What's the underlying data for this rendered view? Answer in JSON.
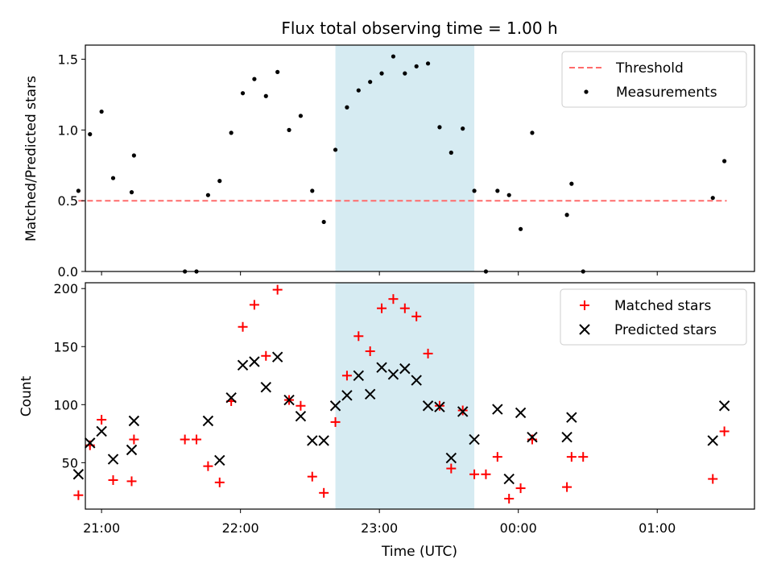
{
  "chart_data": [
    {
      "type": "scatter",
      "title": "Flux total observing time = 1.00 h",
      "xlabel": "",
      "ylabel": "Matched/Predicted stars",
      "x_axis": "time",
      "xlim": [
        "20:53",
        "01:42"
      ],
      "ylim": [
        0,
        1.6
      ],
      "yticks": [
        0.0,
        0.5,
        1.0,
        1.5
      ],
      "ytick_labels": [
        "0.0",
        "0.5",
        "1.0",
        "1.5"
      ],
      "x_tick_labels_shown": false,
      "grid": false,
      "legend_position": "top-right",
      "shaded_interval": {
        "start": "22:41",
        "end": "23:41",
        "color": "#add8e6"
      },
      "threshold": {
        "name": "Threshold",
        "value": 0.5,
        "x_start": "20:50",
        "x_end": "01:30",
        "color": "#ff6b6b",
        "style": "dashed"
      },
      "series": [
        {
          "name": "Measurements",
          "color": "#000000",
          "marker": "dot",
          "points": [
            [
              "20:50",
              0.57
            ],
            [
              "20:55",
              0.97
            ],
            [
              "21:00",
              1.13
            ],
            [
              "21:05",
              0.66
            ],
            [
              "21:13",
              0.56
            ],
            [
              "21:14",
              0.82
            ],
            [
              "21:36",
              0.0
            ],
            [
              "21:41",
              0.0
            ],
            [
              "21:46",
              0.54
            ],
            [
              "21:51",
              0.64
            ],
            [
              "21:56",
              0.98
            ],
            [
              "22:01",
              1.26
            ],
            [
              "22:06",
              1.36
            ],
            [
              "22:11",
              1.24
            ],
            [
              "22:16",
              1.41
            ],
            [
              "22:21",
              1.0
            ],
            [
              "22:26",
              1.1
            ],
            [
              "22:31",
              0.57
            ],
            [
              "22:36",
              0.35
            ],
            [
              "22:41",
              0.86
            ],
            [
              "22:46",
              1.16
            ],
            [
              "22:51",
              1.28
            ],
            [
              "22:56",
              1.34
            ],
            [
              "23:01",
              1.4
            ],
            [
              "23:06",
              1.52
            ],
            [
              "23:11",
              1.4
            ],
            [
              "23:16",
              1.45
            ],
            [
              "23:21",
              1.47
            ],
            [
              "23:26",
              1.02
            ],
            [
              "23:31",
              0.84
            ],
            [
              "23:36",
              1.01
            ],
            [
              "23:41",
              0.57
            ],
            [
              "23:46",
              0.0
            ],
            [
              "23:51",
              0.57
            ],
            [
              "23:56",
              0.54
            ],
            [
              "00:01",
              0.3
            ],
            [
              "00:06",
              0.98
            ],
            [
              "00:21",
              0.4
            ],
            [
              "00:23",
              0.62
            ],
            [
              "00:28",
              0.0
            ],
            [
              "01:24",
              0.52
            ],
            [
              "01:29",
              0.78
            ]
          ]
        }
      ]
    },
    {
      "type": "scatter",
      "title": "",
      "xlabel": "Time (UTC)",
      "ylabel": "Count",
      "x_axis": "time",
      "xlim": [
        "20:53",
        "01:42"
      ],
      "ylim": [
        10,
        205
      ],
      "yticks": [
        50,
        100,
        150,
        200
      ],
      "ytick_labels": [
        "50",
        "100",
        "150",
        "200"
      ],
      "xticks": [
        "21:00",
        "22:00",
        "23:00",
        "00:00",
        "01:00"
      ],
      "xtick_labels": [
        "21:00",
        "22:00",
        "23:00",
        "00:00",
        "01:00"
      ],
      "grid": false,
      "legend_position": "top-right",
      "shaded_interval": {
        "start": "22:41",
        "end": "23:41",
        "color": "#add8e6"
      },
      "series": [
        {
          "name": "Matched stars",
          "color": "#ff0000",
          "marker": "plus",
          "points": [
            [
              "20:50",
              22
            ],
            [
              "20:55",
              65
            ],
            [
              "21:00",
              87
            ],
            [
              "21:05",
              35
            ],
            [
              "21:13",
              34
            ],
            [
              "21:14",
              70
            ],
            [
              "21:36",
              70
            ],
            [
              "21:41",
              70
            ],
            [
              "21:46",
              47
            ],
            [
              "21:51",
              33
            ],
            [
              "21:56",
              103
            ],
            [
              "22:01",
              167
            ],
            [
              "22:06",
              186
            ],
            [
              "22:11",
              142
            ],
            [
              "22:16",
              199
            ],
            [
              "22:21",
              104
            ],
            [
              "22:26",
              99
            ],
            [
              "22:31",
              38
            ],
            [
              "22:36",
              24
            ],
            [
              "22:41",
              85
            ],
            [
              "22:46",
              125
            ],
            [
              "22:51",
              159
            ],
            [
              "22:56",
              146
            ],
            [
              "23:01",
              183
            ],
            [
              "23:06",
              191
            ],
            [
              "23:11",
              183
            ],
            [
              "23:16",
              176
            ],
            [
              "23:21",
              144
            ],
            [
              "23:26",
              99
            ],
            [
              "23:31",
              45
            ],
            [
              "23:36",
              95
            ],
            [
              "23:41",
              40
            ],
            [
              "23:46",
              40
            ],
            [
              "23:51",
              55
            ],
            [
              "23:56",
              19
            ],
            [
              "00:01",
              28
            ],
            [
              "00:06",
              70
            ],
            [
              "00:21",
              29
            ],
            [
              "00:23",
              55
            ],
            [
              "00:28",
              55
            ],
            [
              "01:24",
              36
            ],
            [
              "01:29",
              77
            ]
          ]
        },
        {
          "name": "Predicted stars",
          "color": "#000000",
          "marker": "x",
          "points": [
            [
              "20:50",
              40
            ],
            [
              "20:55",
              67
            ],
            [
              "21:00",
              77
            ],
            [
              "21:05",
              53
            ],
            [
              "21:13",
              61
            ],
            [
              "21:14",
              86
            ],
            [
              "21:46",
              86
            ],
            [
              "21:51",
              52
            ],
            [
              "21:56",
              106
            ],
            [
              "22:01",
              134
            ],
            [
              "22:06",
              137
            ],
            [
              "22:11",
              115
            ],
            [
              "22:16",
              141
            ],
            [
              "22:21",
              104
            ],
            [
              "22:26",
              90
            ],
            [
              "22:31",
              69
            ],
            [
              "22:36",
              69
            ],
            [
              "22:41",
              99
            ],
            [
              "22:46",
              108
            ],
            [
              "22:51",
              125
            ],
            [
              "22:56",
              109
            ],
            [
              "23:01",
              132
            ],
            [
              "23:06",
              126
            ],
            [
              "23:11",
              131
            ],
            [
              "23:16",
              121
            ],
            [
              "23:21",
              99
            ],
            [
              "23:26",
              98
            ],
            [
              "23:31",
              54
            ],
            [
              "23:36",
              94
            ],
            [
              "23:41",
              70
            ],
            [
              "23:51",
              96
            ],
            [
              "23:56",
              36
            ],
            [
              "00:01",
              93
            ],
            [
              "00:06",
              72
            ],
            [
              "00:21",
              72
            ],
            [
              "00:23",
              89
            ],
            [
              "01:24",
              69
            ],
            [
              "01:29",
              99
            ]
          ]
        }
      ]
    }
  ]
}
